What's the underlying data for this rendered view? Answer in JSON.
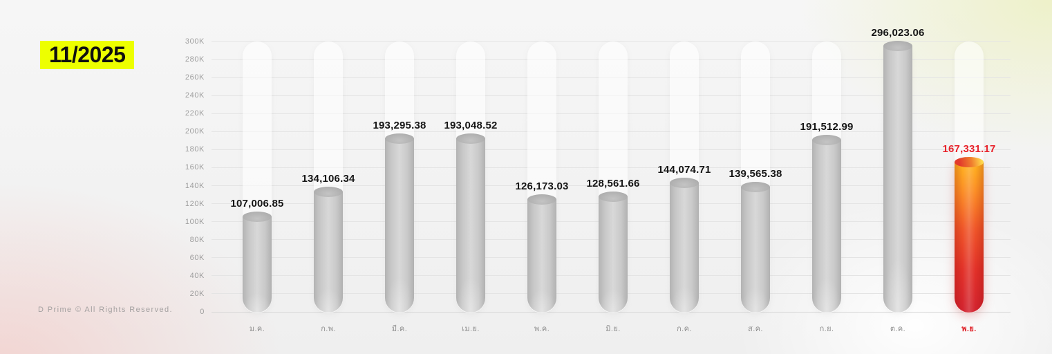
{
  "badge": {
    "label": "11/2025",
    "bg_color": "#edff00",
    "text_color": "#101010"
  },
  "footer": {
    "label": "D Prime © All Rights Reserved."
  },
  "chart_data": {
    "type": "bar",
    "title": "11/2025",
    "categories": [
      "ม.ค.",
      "ก.พ.",
      "มี.ค.",
      "เม.ย.",
      "พ.ค.",
      "มิ.ย.",
      "ก.ค.",
      "ส.ค.",
      "ก.ย.",
      "ต.ค.",
      "พ.ย."
    ],
    "values": [
      107006.85,
      134106.34,
      193295.38,
      193048.52,
      126173.03,
      128561.66,
      144074.71,
      139565.38,
      191512.99,
      296023.06,
      167331.17
    ],
    "value_labels": [
      "107,006.85",
      "134,106.34",
      "193,295.38",
      "193,048.52",
      "126,173.03",
      "128,561.66",
      "144,074.71",
      "139,565.38",
      "191,512.99",
      "296,023.06",
      "167,331.17"
    ],
    "highlight_index": 10,
    "xlabel": "",
    "ylabel": "",
    "ylim": [
      0,
      300000
    ],
    "ytick_step": 20000,
    "ytick_labels": [
      "0",
      "20K",
      "40K",
      "60K",
      "80K",
      "100K",
      "120K",
      "140K",
      "160K",
      "180K",
      "200K",
      "220K",
      "240K",
      "260K",
      "280K",
      "300K"
    ],
    "grid": true,
    "legend": false,
    "colors": {
      "bar_gray": "#c6c6c6",
      "highlight_gradient_top": "#ffb41f",
      "highlight_gradient_bottom": "#d2232f",
      "value_label": "#161616",
      "highlight_value_label": "#e8232b",
      "axis_tick_label": "#9e9e9e",
      "month_label": "#8f8f8f",
      "highlight_month_label": "#e02128",
      "gridline": "#e4e4e4",
      "track": "rgba(255,255,255,0.55)"
    }
  }
}
